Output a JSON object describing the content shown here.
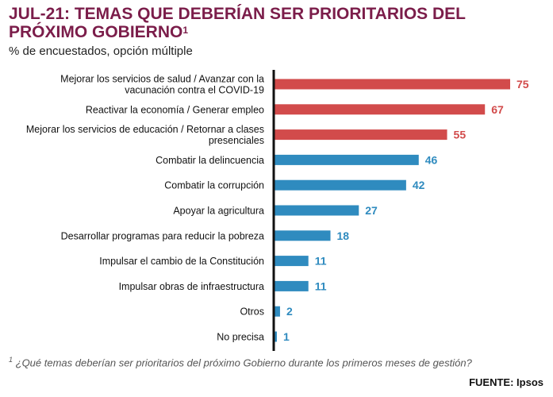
{
  "header": {
    "title_main": "JUL-21: TEMAS QUE DEBERÍAN SER PRIORITARIOS DEL PRÓXIMO GOBIERNO",
    "title_sup": "1",
    "subtitle": "% de encuestados, opción múltiple"
  },
  "footer": {
    "footnote_mark": "1",
    "footnote_text": " ¿Qué temas deberían ser prioritarios del próximo Gobierno durante los primeros meses de gestión?",
    "source": "FUENTE: Ipsos"
  },
  "colors": {
    "title": "#7b1d4a",
    "highlight": "#d24b4b",
    "base": "#2f8bbf",
    "axis": "#111111"
  },
  "chart_data": {
    "type": "bar",
    "orientation": "horizontal",
    "categories": [
      [
        "Mejorar los servicios de salud / Avanzar con la",
        "vacunación contra el COVID-19"
      ],
      [
        "Reactivar la economía / Generar empleo"
      ],
      [
        "Mejorar los servicios de educación / Retornar a clases",
        "presenciales"
      ],
      [
        "Combatir la delincuencia"
      ],
      [
        "Combatir la corrupción"
      ],
      [
        "Apoyar la agricultura"
      ],
      [
        "Desarrollar programas para reducir la pobreza"
      ],
      [
        "Impulsar el cambio de la Constitución"
      ],
      [
        "Impulsar obras de infraestructura"
      ],
      [
        "Otros"
      ],
      [
        "No precisa"
      ]
    ],
    "values": [
      75,
      67,
      55,
      46,
      42,
      27,
      18,
      11,
      11,
      2,
      1
    ],
    "value_labels": [
      "75",
      "67",
      "55",
      "46",
      "42",
      "27",
      "18",
      "11",
      "11",
      "2",
      "1"
    ],
    "highlight_count": 3,
    "xlim": [
      0,
      75
    ]
  }
}
